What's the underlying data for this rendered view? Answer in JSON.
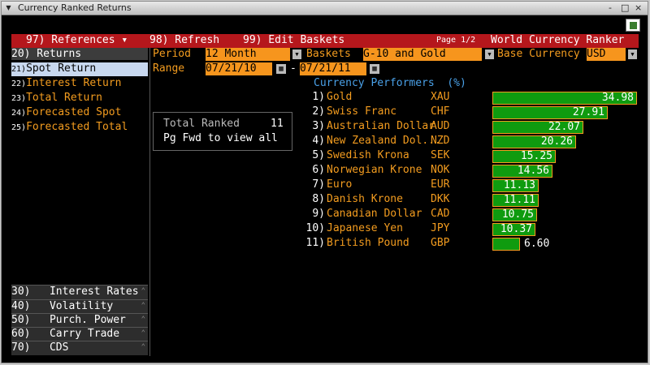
{
  "window": {
    "title": "Currency Ranked Returns",
    "buttons": [
      "-",
      "□",
      "×"
    ]
  },
  "menubar": {
    "references": "97) References ▾",
    "refresh": "98) Refresh",
    "edit_baskets": "99) Edit Baskets",
    "page": "Page 1/2",
    "app_name": "World Currency Ranker"
  },
  "sidebar": {
    "header": "20)   Returns",
    "items": [
      {
        "num": "21)",
        "label": "Spot Return"
      },
      {
        "num": "22)",
        "label": "Interest Return"
      },
      {
        "num": "23)",
        "label": "Total Return"
      },
      {
        "num": "24)",
        "label": "Forecasted Spot"
      },
      {
        "num": "25)",
        "label": "Forecasted Total"
      }
    ],
    "bottom": [
      "30)   Interest Rates",
      "40)   Volatility",
      "50)   Purch. Power",
      "60)   Carry Trade",
      "70)   CDS"
    ]
  },
  "fields": {
    "period_label": "Period",
    "period_value": "12 Month",
    "baskets_label": "Baskets",
    "baskets_value": "G-10 and Gold",
    "base_label": "Base Currency",
    "base_value": "USD",
    "range_label": "Range",
    "range_start": "07/21/10",
    "range_end": "07/21/11",
    "range_sep": "-"
  },
  "info": {
    "total_label": "Total Ranked",
    "total_value": "11",
    "hint": "Pg Fwd to view all"
  },
  "performers": {
    "heading": "Currency Performers  (%)",
    "rows": [
      {
        "rank": "1)",
        "name": "Gold",
        "code": "XAU",
        "value": 34.98,
        "display": "34.98"
      },
      {
        "rank": "2)",
        "name": "Swiss Franc",
        "code": "CHF",
        "value": 27.91,
        "display": "27.91"
      },
      {
        "rank": "3)",
        "name": "Australian Dollar",
        "code": "AUD",
        "value": 22.07,
        "display": "22.07"
      },
      {
        "rank": "4)",
        "name": "New Zealand Dol...",
        "code": "NZD",
        "value": 20.26,
        "display": "20.26"
      },
      {
        "rank": "5)",
        "name": "Swedish Krona",
        "code": "SEK",
        "value": 15.25,
        "display": "15.25"
      },
      {
        "rank": "6)",
        "name": "Norwegian Krone",
        "code": "NOK",
        "value": 14.56,
        "display": "14.56"
      },
      {
        "rank": "7)",
        "name": "Euro",
        "code": "EUR",
        "value": 11.13,
        "display": "11.13"
      },
      {
        "rank": "8)",
        "name": "Danish Krone",
        "code": "DKK",
        "value": 11.11,
        "display": "11.11"
      },
      {
        "rank": "9)",
        "name": "Canadian Dollar",
        "code": "CAD",
        "value": 10.75,
        "display": "10.75"
      },
      {
        "rank": "10)",
        "name": "Japanese Yen",
        "code": "JPY",
        "value": 10.37,
        "display": "10.37"
      },
      {
        "rank": "11)",
        "name": "British Pound",
        "code": "GBP",
        "value": 6.6,
        "display": "6.60"
      }
    ]
  },
  "colors": {
    "accent_red": "#b5171c",
    "orange": "#f39c1f",
    "bar_green": "#0f9b0f",
    "heading_blue": "#4aa1e8"
  },
  "icons": {
    "launch": "export-icon",
    "system_menu": "system-menu-icon"
  }
}
